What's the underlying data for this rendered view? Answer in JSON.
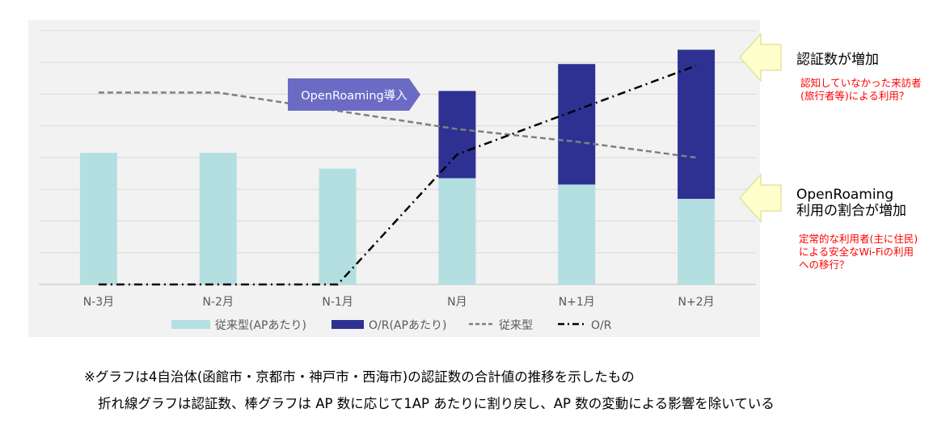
{
  "chart_data": {
    "type": "bar",
    "categories": [
      "N-3月",
      "N-2月",
      "N-1月",
      "N月",
      "N+1月",
      "N+2月"
    ],
    "ylim": [
      0,
      8
    ],
    "grid": true,
    "legend_position": "bottom",
    "stacked": true,
    "series": [
      {
        "name": "従来型(APあたり)",
        "kind": "bar",
        "color": "#b4dfe0",
        "values": [
          4.15,
          4.15,
          3.65,
          3.35,
          3.15,
          2.7
        ]
      },
      {
        "name": "O/R(APあたり)",
        "kind": "bar",
        "color": "#2e3192",
        "values": [
          0,
          0,
          0,
          2.75,
          3.8,
          4.7
        ]
      },
      {
        "name": "従来型",
        "kind": "line",
        "style": "dashed",
        "color": "#7f7f7f",
        "values": [
          6.05,
          6.05,
          null,
          4.9,
          4.5,
          4.0
        ]
      },
      {
        "name": "O/R",
        "kind": "line",
        "style": "dash-dot",
        "color": "#000000",
        "values": [
          0,
          0,
          0,
          4.1,
          5.5,
          6.9
        ]
      }
    ],
    "annotations": {
      "intro_marker": "OpenRoaming導入",
      "callout1_title": "認証数が増加",
      "callout1_note_lines": [
        "認知していなかった来訪者",
        "(旅行者等)による利用？"
      ],
      "callout2_title_lines": [
        "OpenRoaming",
        "利用の割合が増加"
      ],
      "callout2_note_lines": [
        "定常的な利用者(主に住民)",
        "による安全なWi-Fiの利用",
        "への移行？"
      ]
    }
  },
  "colors": {
    "panel": "#f2f2f2",
    "grid": "#d9d9d9",
    "arrow_fill": "#ffffcc",
    "arrow_stroke": "#e3e3a0",
    "intro_fill": "#6b6bc6",
    "note_red": "#ff0000"
  },
  "footnotes": {
    "line1": "※グラフは4自治体(函館市・京都市・神戸市・西海市)の認証数の合計値の推移を示したもの",
    "line2": "折れ線グラフは認証数、棒グラフは AP 数に応じて1AP あたりに割り戻し、AP 数の変動による影響を除いている"
  }
}
